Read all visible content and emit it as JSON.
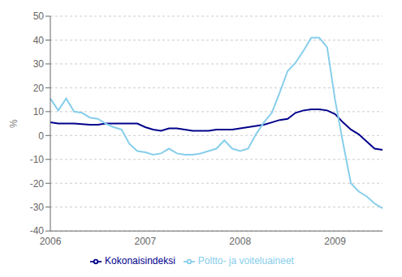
{
  "chart_data": {
    "type": "line",
    "ylabel": "%",
    "categories": [
      "2006",
      null,
      null,
      null,
      null,
      null,
      null,
      null,
      null,
      null,
      null,
      null,
      "2007",
      null,
      null,
      null,
      null,
      null,
      null,
      null,
      null,
      null,
      null,
      null,
      "2008",
      null,
      null,
      null,
      null,
      null,
      null,
      null,
      null,
      null,
      null,
      null,
      "2009",
      null,
      null,
      null,
      null,
      null,
      null
    ],
    "series": [
      {
        "name": "Kokonaisindeksi",
        "color": "#00008B",
        "values": [
          5.5,
          5.0,
          5.0,
          5.0,
          4.8,
          4.5,
          4.5,
          5.0,
          5.0,
          5.0,
          5.0,
          5.0,
          3.5,
          2.5,
          2.0,
          3.0,
          3.0,
          2.5,
          2.0,
          2.0,
          2.0,
          2.5,
          2.5,
          2.5,
          3.0,
          3.5,
          4.0,
          4.5,
          5.5,
          6.5,
          7.0,
          9.5,
          10.5,
          11.0,
          11.0,
          10.5,
          9.0,
          5.5,
          2.5,
          0.5,
          -2.5,
          -5.5,
          -6.0
        ]
      },
      {
        "name": "Poltto- ja voiteluaineet",
        "color": "#87CEEB",
        "values": [
          15.5,
          10.5,
          15.5,
          10.0,
          9.5,
          7.5,
          7.0,
          5.0,
          3.5,
          2.5,
          -3.5,
          -6.5,
          -7.0,
          -8.0,
          -7.5,
          -5.5,
          -7.5,
          -8.0,
          -8.0,
          -7.5,
          -6.5,
          -5.5,
          -2.0,
          -5.5,
          -6.5,
          -5.5,
          0.5,
          5.5,
          9.5,
          18.0,
          27.0,
          30.5,
          35.5,
          41.0,
          41.0,
          37.0,
          15.0,
          -3.0,
          -20.0,
          -23.5,
          -25.5,
          -28.5,
          -30.5
        ]
      }
    ],
    "ylim": [
      -40,
      50
    ],
    "yticks": [
      -40,
      -30,
      -20,
      -10,
      0,
      10,
      20,
      30,
      40,
      50
    ],
    "grid": true,
    "legend": "bottom"
  }
}
